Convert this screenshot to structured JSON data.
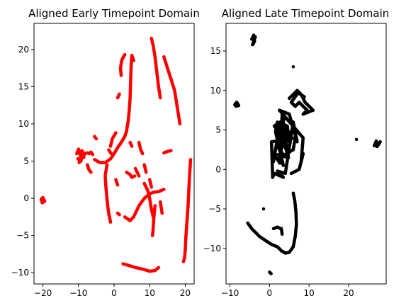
{
  "chart_data": [
    {
      "type": "scatter",
      "title": "Aligned Early Timepoint Domain",
      "xlabel": "",
      "ylabel": "",
      "xlim": [
        -22.5,
        22.5
      ],
      "ylim": [
        -11.5,
        23.5
      ],
      "xticks": [
        -20,
        -10,
        0,
        10,
        20
      ],
      "yticks": [
        -10,
        -5,
        0,
        5,
        10,
        15,
        20
      ],
      "color": "#ff0000",
      "grid": false,
      "series": [
        {
          "segments": [
            [
              [
                -20.5,
                -0.2
              ],
              [
                -20.0,
                0.1
              ],
              [
                -19.5,
                -0.4
              ],
              [
                -20.2,
                -0.6
              ],
              [
                -20.3,
                0.0
              ],
              [
                -19.8,
                -0.3
              ]
            ],
            [
              [
                -10.5,
                6.0
              ],
              [
                -10.0,
                6.6
              ],
              [
                -9.5,
                5.8
              ],
              [
                -9.0,
                6.4
              ],
              [
                -8.5,
                5.5
              ],
              [
                -10.2,
                5.3
              ],
              [
                -9.3,
                5.0
              ],
              [
                -8.8,
                6.2
              ],
              [
                -9.8,
                4.8
              ],
              [
                -8.2,
                6.0
              ],
              [
                -7.5,
                6.1
              ],
              [
                -7.0,
                6.0
              ],
              [
                -6.5,
                6.2
              ],
              [
                -6.0,
                5.9
              ]
            ],
            [
              [
                -7.5,
                4.5
              ],
              [
                -7.0,
                3.8
              ],
              [
                -6.5,
                3.5
              ]
            ],
            [
              [
                -5.5,
                8.3
              ],
              [
                -5.0,
                8.0
              ]
            ],
            [
              [
                -5.5,
                5.2
              ],
              [
                -4.0,
                4.8
              ],
              [
                -2.5,
                4.8
              ],
              [
                -1.0,
                5.3
              ],
              [
                0.0,
                6.0
              ],
              [
                1.0,
                6.8
              ],
              [
                2.0,
                7.5
              ],
              [
                3.0,
                8.3
              ],
              [
                3.5,
                9.0
              ],
              [
                4.0,
                10.5
              ],
              [
                4.3,
                12.0
              ],
              [
                4.5,
                13.5
              ],
              [
                4.6,
                15.0
              ],
              [
                4.7,
                16.5
              ],
              [
                4.8,
                18.0
              ],
              [
                5.0,
                19.2
              ],
              [
                5.5,
                18.5
              ]
            ],
            [
              [
                2.0,
                16.5
              ],
              [
                1.8,
                17.5
              ],
              [
                2.2,
                18.6
              ],
              [
                3.0,
                19.3
              ]
            ],
            [
              [
                1.0,
                13.5
              ],
              [
                1.5,
                14.0
              ]
            ],
            [
              [
                -2.0,
                4.5
              ],
              [
                -2.5,
                3.0
              ],
              [
                -2.2,
                1.0
              ],
              [
                -1.8,
                -1.0
              ],
              [
                -1.5,
                -2.0
              ],
              [
                -1.0,
                -3.2
              ]
            ],
            [
              [
                -1.0,
                7.0
              ],
              [
                -0.5,
                8.0
              ],
              [
                0.5,
                8.8
              ]
            ],
            [
              [
                -1.5,
                6.5
              ],
              [
                -0.8,
                6.0
              ]
            ],
            [
              [
                1.0,
                1.8
              ],
              [
                0.5,
                2.5
              ]
            ],
            [
              [
                1.0,
                -2.0
              ],
              [
                1.5,
                -2.2
              ]
            ],
            [
              [
                3.0,
                -2.5
              ],
              [
                4.5,
                -3.0
              ],
              [
                5.5,
                -2.5
              ],
              [
                7.0,
                -1.0
              ],
              [
                8.5,
                0.0
              ],
              [
                10.0,
                0.6
              ],
              [
                11.0,
                0.8
              ],
              [
                12.5,
                0.9
              ],
              [
                14.0,
                1.2
              ]
            ],
            [
              [
                3.5,
                3.5
              ],
              [
                4.5,
                3.2
              ],
              [
                5.0,
                2.8
              ],
              [
                5.8,
                3.0
              ]
            ],
            [
              [
                4.5,
                7.5
              ],
              [
                5.0,
                7.0
              ]
            ],
            [
              [
                6.0,
                4.0
              ],
              [
                7.0,
                3.0
              ]
            ],
            [
              [
                7.0,
                7.5
              ],
              [
                7.5,
                6.5
              ],
              [
                8.0,
                6.0
              ]
            ],
            [
              [
                8.5,
                4.5
              ],
              [
                9.0,
                3.5
              ]
            ],
            [
              [
                10.0,
                2.5
              ],
              [
                10.5,
                1.5
              ]
            ],
            [
              [
                10.5,
                21.5
              ],
              [
                11.0,
                20.5
              ],
              [
                11.5,
                19.0
              ],
              [
                12.0,
                17.0
              ],
              [
                12.5,
                15.0
              ],
              [
                13.0,
                13.5
              ]
            ],
            [
              [
                14.0,
                19.0
              ],
              [
                15.0,
                17.5
              ],
              [
                16.0,
                16.0
              ],
              [
                17.0,
                14.5
              ],
              [
                17.5,
                13.0
              ],
              [
                18.0,
                11.5
              ],
              [
                18.5,
                10.0
              ]
            ],
            [
              [
                8.5,
                2.0
              ],
              [
                9.5,
                1.0
              ],
              [
                10.0,
                0.0
              ],
              [
                10.5,
                -1.5
              ],
              [
                11.0,
                -2.5
              ]
            ],
            [
              [
                11.5,
                -1.0
              ],
              [
                11.2,
                -2.5
              ],
              [
                11.0,
                -4.0
              ],
              [
                10.8,
                -5.0
              ]
            ],
            [
              [
                13.0,
                -0.5
              ],
              [
                13.5,
                -2.0
              ]
            ],
            [
              [
                14.0,
                6.1
              ],
              [
                15.0,
                6.3
              ],
              [
                16.0,
                6.4
              ]
            ],
            [
              [
                21.5,
                5.2
              ],
              [
                21.2,
                3.0
              ],
              [
                21.0,
                1.0
              ],
              [
                20.8,
                -1.0
              ],
              [
                20.5,
                -3.0
              ],
              [
                20.2,
                -5.0
              ],
              [
                20.0,
                -7.0
              ],
              [
                19.8,
                -8.0
              ],
              [
                19.5,
                -8.5
              ]
            ],
            [
              [
                2.5,
                -8.8
              ],
              [
                4.0,
                -9.0
              ],
              [
                6.0,
                -9.3
              ],
              [
                8.0,
                -9.5
              ],
              [
                10.0,
                -9.8
              ],
              [
                11.5,
                -9.7
              ],
              [
                12.5,
                -9.3
              ]
            ]
          ]
        }
      ]
    },
    {
      "type": "scatter",
      "title": "Aligned Late Timepoint Domain",
      "xlabel": "",
      "ylabel": "",
      "xlim": [
        -11.0,
        29.5
      ],
      "ylim": [
        -14.5,
        18.5
      ],
      "xticks": [
        -10,
        0,
        10,
        20
      ],
      "yticks": [
        -10,
        -5,
        0,
        5,
        10,
        15
      ],
      "color": "#000000",
      "grid": false,
      "series": [
        {
          "segments": [
            [
              [
                -4.5,
                16.5
              ],
              [
                -4.0,
                17.0
              ],
              [
                -3.8,
                16.2
              ],
              [
                -4.3,
                15.8
              ],
              [
                -3.6,
                16.8
              ],
              [
                -4.1,
                16.6
              ]
            ],
            [
              [
                6.0,
                13.0
              ]
            ],
            [
              [
                -8.8,
                8.2
              ],
              [
                -8.3,
                8.5
              ],
              [
                -7.8,
                8.1
              ],
              [
                -8.5,
                8.0
              ]
            ],
            [
              [
                1.0,
                1.0
              ],
              [
                1.5,
                2.5
              ],
              [
                2.0,
                4.0
              ],
              [
                2.5,
                5.5
              ],
              [
                3.0,
                3.0
              ],
              [
                3.5,
                6.0
              ],
              [
                4.0,
                4.5
              ],
              [
                4.5,
                2.0
              ],
              [
                2.5,
                1.5
              ],
              [
                3.5,
                0.5
              ],
              [
                1.5,
                4.8
              ],
              [
                2.0,
                6.0
              ],
              [
                4.5,
                5.5
              ],
              [
                5.0,
                3.5
              ],
              [
                5.5,
                4.8
              ],
              [
                1.8,
                3.2
              ],
              [
                2.8,
                2.2
              ],
              [
                3.8,
                3.8
              ],
              [
                1.2,
                5.5
              ],
              [
                4.2,
                6.5
              ],
              [
                3.2,
                7.0
              ],
              [
                2.6,
                0.8
              ],
              [
                1.0,
                2.0
              ],
              [
                4.8,
                1.5
              ],
              [
                3.0,
                4.5
              ],
              [
                2.2,
                2.8
              ],
              [
                3.6,
                1.8
              ],
              [
                6.0,
                2.5
              ],
              [
                6.5,
                4.0
              ],
              [
                0.5,
                3.5
              ],
              [
                0.8,
                -1.0
              ],
              [
                1.2,
                -0.5
              ],
              [
                3.5,
                -1.0
              ],
              [
                2.0,
                -0.2
              ],
              [
                4.0,
                -0.5
              ],
              [
                6.0,
                6.0
              ],
              [
                7.0,
                3.5
              ],
              [
                5.0,
                7.0
              ],
              [
                2.5,
                7.5
              ],
              [
                8.5,
                4.0
              ],
              [
                8.0,
                1.0
              ],
              [
                8.5,
                2.0
              ],
              [
                7.5,
                0.0
              ],
              [
                5.5,
                -0.5
              ]
            ],
            [
              [
                5.0,
                9.0
              ],
              [
                6.0,
                9.5
              ],
              [
                7.0,
                10.0
              ],
              [
                8.0,
                9.5
              ],
              [
                9.0,
                8.5
              ],
              [
                10.0,
                8.0
              ],
              [
                11.0,
                7.5
              ],
              [
                8.5,
                7.0
              ],
              [
                9.5,
                7.5
              ],
              [
                7.5,
                8.5
              ],
              [
                6.5,
                8.0
              ],
              [
                5.5,
                8.5
              ],
              [
                7.2,
                9.7
              ],
              [
                8.8,
                9.2
              ]
            ],
            [
              [
                22.0,
                3.8
              ]
            ],
            [
              [
                26.5,
                3.0
              ],
              [
                27.0,
                3.6
              ],
              [
                27.5,
                3.1
              ],
              [
                28.0,
                3.5
              ],
              [
                27.2,
                2.9
              ]
            ],
            [
              [
                -5.5,
                -6.8
              ],
              [
                -4.5,
                -7.5
              ],
              [
                -3.5,
                -8.0
              ],
              [
                -2.5,
                -8.5
              ],
              [
                -1.0,
                -9.0
              ],
              [
                0.5,
                -9.5
              ],
              [
                2.0,
                -9.8
              ],
              [
                3.0,
                -10.3
              ],
              [
                4.0,
                -10.6
              ],
              [
                5.0,
                -10.5
              ],
              [
                6.0,
                -9.8
              ],
              [
                6.5,
                -8.5
              ],
              [
                6.8,
                -7.0
              ],
              [
                6.7,
                -5.5
              ],
              [
                6.4,
                -4.0
              ],
              [
                6.0,
                -3.0
              ]
            ],
            [
              [
                -1.5,
                -5.0
              ]
            ],
            [
              [
                1.0,
                -7.5
              ],
              [
                2.0,
                -7.3
              ],
              [
                2.8,
                -7.5
              ]
            ],
            [
              [
                3.0,
                -7.5
              ],
              [
                3.2,
                -8.2
              ]
            ],
            [
              [
                0.0,
                -13.0
              ],
              [
                0.4,
                -13.2
              ]
            ]
          ]
        }
      ]
    }
  ]
}
